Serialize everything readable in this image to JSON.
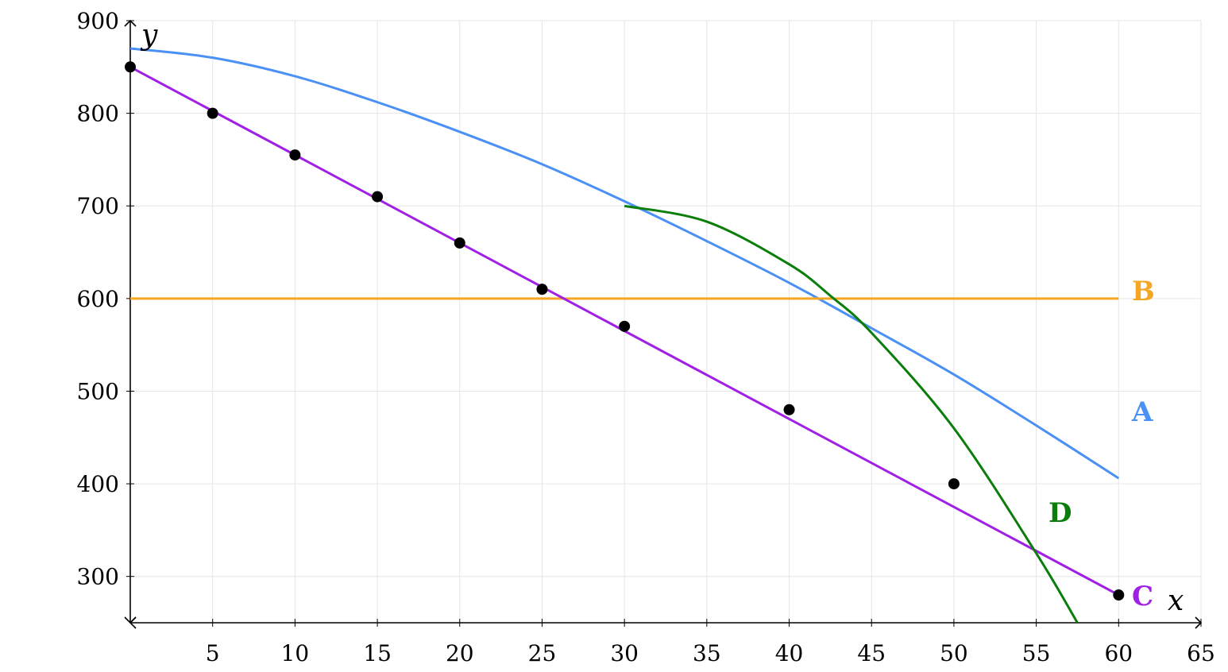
{
  "chart_data": {
    "type": "line",
    "title": "",
    "xlabel": "x",
    "ylabel": "y",
    "xlim": [
      0,
      65
    ],
    "ylim": [
      250,
      900
    ],
    "grid": true,
    "x_ticks": [
      5,
      10,
      15,
      20,
      25,
      30,
      35,
      40,
      45,
      50,
      55,
      60,
      65
    ],
    "y_ticks": [
      300,
      400,
      500,
      600,
      700,
      800,
      900
    ],
    "series": [
      {
        "name": "A",
        "color": "#4a90f5",
        "x": [
          0,
          5,
          10,
          15,
          20,
          25,
          30,
          35,
          40,
          45,
          50,
          55,
          60
        ],
        "y": [
          870,
          860,
          840,
          812,
          780,
          745,
          705,
          662,
          617,
          568,
          518,
          463,
          406
        ]
      },
      {
        "name": "B",
        "color": "#f5a623",
        "x": [
          0,
          60
        ],
        "y": [
          600,
          600
        ]
      },
      {
        "name": "C",
        "color": "#a020e6",
        "x": [
          0,
          60
        ],
        "y": [
          850,
          280
        ]
      },
      {
        "name": "D",
        "color": "#0a7d0a",
        "x": [
          30,
          35,
          40,
          42.5,
          45,
          50,
          55,
          57.5
        ],
        "y": [
          700,
          683,
          637,
          603,
          563,
          460,
          325,
          250
        ]
      }
    ],
    "scatter": {
      "color": "#000000",
      "x": [
        0,
        5,
        10,
        15,
        20,
        25,
        30,
        40,
        50,
        60
      ],
      "y": [
        850,
        800,
        755,
        710,
        660,
        610,
        570,
        480,
        400,
        280
      ]
    }
  }
}
